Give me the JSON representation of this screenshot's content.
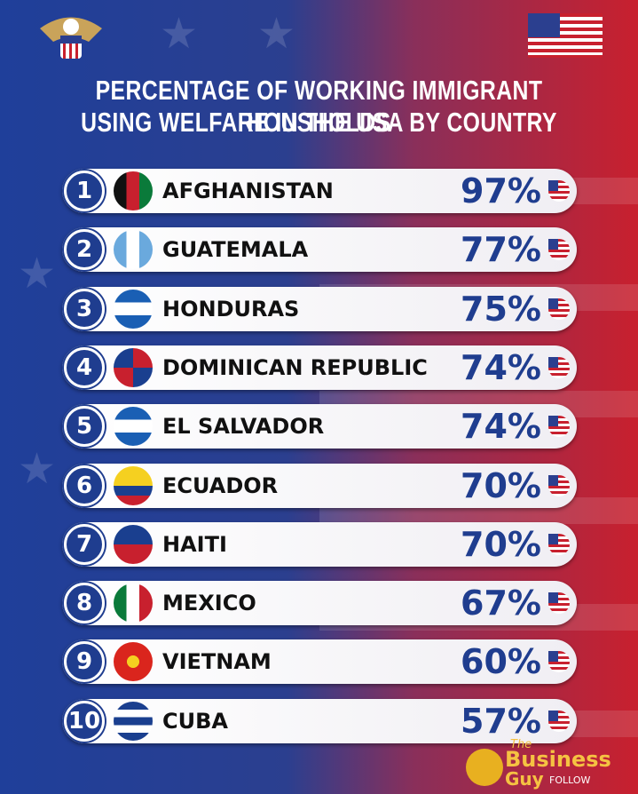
{
  "header": {
    "title_line1": "PERCENTAGE OF WORKING IMMIGRANT HOUSHOLDS",
    "title_line2": "USING WELFARE IN THE USA BY COUNTRY"
  },
  "rows": [
    {
      "rank": "1",
      "country": "AFGHANISTAN",
      "value": "97%"
    },
    {
      "rank": "2",
      "country": "GUATEMALA",
      "value": "77%"
    },
    {
      "rank": "3",
      "country": "HONDURAS",
      "value": "75%"
    },
    {
      "rank": "4",
      "country": "DOMINICAN REPUBLIC",
      "value": "74%"
    },
    {
      "rank": "5",
      "country": "EL SALVADOR",
      "value": "74%"
    },
    {
      "rank": "6",
      "country": "ECUADOR",
      "value": "70%"
    },
    {
      "rank": "7",
      "country": "HAITI",
      "value": "70%"
    },
    {
      "rank": "8",
      "country": "MEXICO",
      "value": "67%"
    },
    {
      "rank": "9",
      "country": "VIETNAM",
      "value": "60%"
    },
    {
      "rank": "10",
      "country": "CUBA",
      "value": "57%"
    }
  ],
  "brand": {
    "prefix": "The",
    "name1": "Business",
    "name2": "Guy",
    "follow": "FOLLOW"
  }
}
